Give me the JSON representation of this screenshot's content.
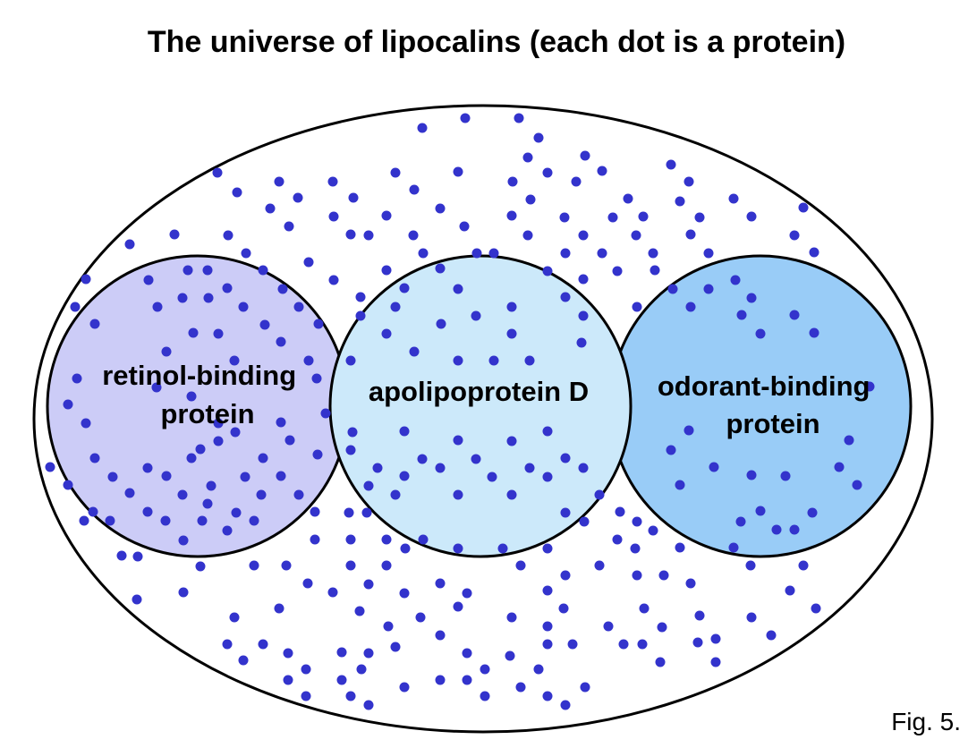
{
  "title": "The universe of lipocalins (each dot is a protein)",
  "groups": [
    {
      "label_lines": [
        "retinol-binding",
        "protein"
      ],
      "fill": "#ccccf7"
    },
    {
      "label_lines": [
        "apolipoprotein D"
      ],
      "fill": "#cce9fa"
    },
    {
      "label_lines": [
        "odorant-binding",
        "protein"
      ],
      "fill": "#99ccf7"
    }
  ],
  "figure_caption": "Fig. 5.",
  "colors": {
    "dot": "#3333cc",
    "outline": "#000000",
    "background": "#ffffff"
  }
}
